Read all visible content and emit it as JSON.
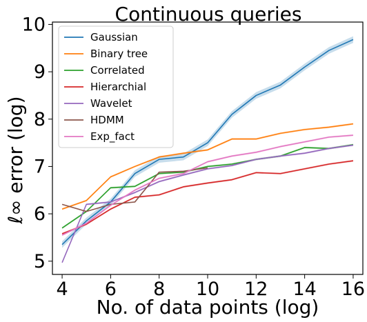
{
  "chart_data": {
    "type": "line",
    "title": "Continuous queries",
    "xlabel": "No. of data points (log)",
    "ylabel": "ℓ∞ error (log)",
    "xlim": [
      3.6,
      16.4
    ],
    "ylim": [
      4.72,
      10.05
    ],
    "xticks": [
      4,
      6,
      8,
      10,
      12,
      14,
      16
    ],
    "yticks": [
      5,
      6,
      7,
      8,
      9,
      10
    ],
    "grid": false,
    "legend_position": "upper-left",
    "series": [
      {
        "name": "Gaussian",
        "color": "#1f77b4",
        "band": 0.07,
        "x": [
          4,
          5,
          6,
          7,
          8,
          9,
          10,
          11,
          12,
          13,
          14,
          15,
          16
        ],
        "y": [
          5.35,
          5.85,
          6.25,
          6.85,
          7.15,
          7.2,
          7.5,
          8.1,
          8.5,
          8.72,
          9.1,
          9.45,
          9.68
        ]
      },
      {
        "name": "Binary tree",
        "color": "#ff7f0e",
        "band": 0.02,
        "x": [
          4,
          5,
          6,
          7,
          8,
          9,
          10,
          11,
          12,
          13,
          14,
          15,
          16
        ],
        "y": [
          6.1,
          6.28,
          6.78,
          7.0,
          7.2,
          7.28,
          7.35,
          7.58,
          7.58,
          7.7,
          7.78,
          7.83,
          7.9
        ]
      },
      {
        "name": "Correlated",
        "color": "#2ca02c",
        "band": 0.02,
        "x": [
          4,
          5,
          6,
          7,
          8,
          9,
          10,
          11,
          12,
          13,
          14,
          15,
          16
        ],
        "y": [
          5.7,
          6.05,
          6.55,
          6.58,
          6.85,
          6.88,
          7.0,
          7.05,
          7.15,
          7.22,
          7.4,
          7.38,
          7.46
        ]
      },
      {
        "name": "Hierarchial",
        "color": "#d62728",
        "band": 0.02,
        "x": [
          4,
          5,
          6,
          7,
          8,
          9,
          10,
          11,
          12,
          13,
          14,
          15,
          16
        ],
        "y": [
          5.58,
          5.78,
          6.1,
          6.35,
          6.4,
          6.57,
          6.65,
          6.72,
          6.87,
          6.85,
          6.95,
          7.05,
          7.12
        ]
      },
      {
        "name": "Wavelet",
        "color": "#9467bd",
        "band": 0.02,
        "x": [
          4,
          5,
          6,
          7,
          8,
          9,
          10,
          11,
          12,
          13,
          14,
          15,
          16
        ],
        "y": [
          4.97,
          6.2,
          6.25,
          6.45,
          6.68,
          6.82,
          6.95,
          7.02,
          7.15,
          7.22,
          7.28,
          7.38,
          7.45
        ]
      },
      {
        "name": "HDMM",
        "color": "#8c564b",
        "band": 0.0,
        "x": [
          4,
          5,
          6,
          7,
          8,
          9,
          10
        ],
        "y": [
          6.2,
          6.05,
          6.2,
          6.25,
          6.88,
          6.9,
          6.97
        ]
      },
      {
        "name": "Exp_fact",
        "color": "#e377c2",
        "band": 0.02,
        "x": [
          4,
          5,
          6,
          7,
          8,
          9,
          10,
          11,
          12,
          13,
          14,
          15,
          16
        ],
        "y": [
          5.55,
          5.8,
          6.18,
          6.5,
          6.75,
          6.85,
          7.1,
          7.22,
          7.3,
          7.42,
          7.52,
          7.62,
          7.66
        ]
      }
    ]
  }
}
